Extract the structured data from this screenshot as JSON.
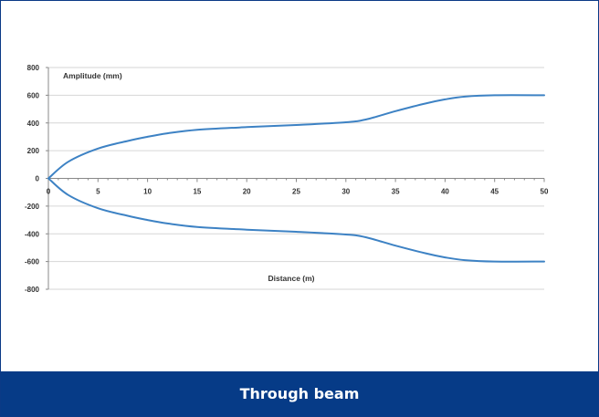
{
  "caption": "Through beam",
  "chart_data": {
    "type": "line",
    "ylabel": "Amplitude (mm)",
    "xlabel": "Distance (m)",
    "xlim": [
      0,
      50
    ],
    "ylim": [
      -800,
      800
    ],
    "xticks": [
      0,
      5,
      10,
      15,
      20,
      25,
      30,
      35,
      40,
      45,
      50
    ],
    "yticks": [
      800,
      600,
      400,
      200,
      0,
      -200,
      -400,
      -600,
      -800
    ],
    "grid": true,
    "line_color": "#3d82c4",
    "series": [
      {
        "x": [
          0,
          2,
          5,
          8,
          10,
          12,
          15,
          20,
          25,
          30,
          32,
          35,
          38,
          40,
          42,
          45,
          50
        ],
        "values": [
          0,
          120,
          215,
          270,
          300,
          325,
          350,
          370,
          385,
          405,
          425,
          485,
          540,
          570,
          590,
          600,
          600
        ]
      },
      {
        "x": [
          0,
          2,
          5,
          8,
          10,
          12,
          15,
          20,
          25,
          30,
          32,
          35,
          38,
          40,
          42,
          45,
          50
        ],
        "values": [
          0,
          -120,
          -215,
          -270,
          -300,
          -325,
          -350,
          -370,
          -385,
          -405,
          -425,
          -485,
          -540,
          -570,
          -590,
          -600,
          -600
        ]
      }
    ]
  }
}
